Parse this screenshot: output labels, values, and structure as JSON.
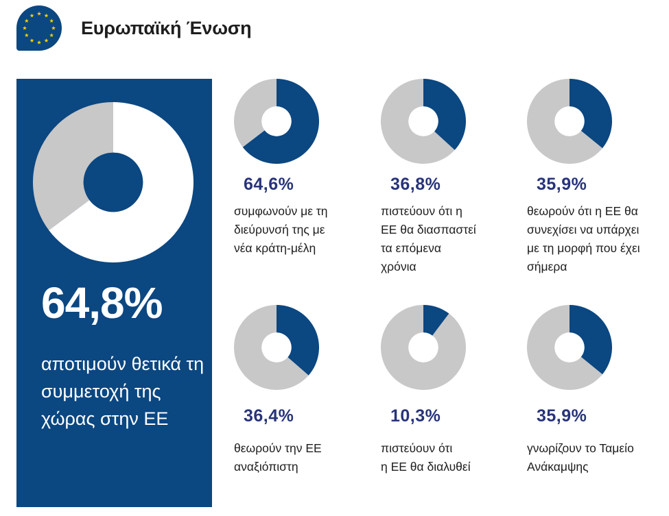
{
  "header": {
    "title": "Ευρωπαϊκή Ένωση",
    "flag_icon": "eu-flag-icon"
  },
  "colors": {
    "blue": "#0b4781",
    "grey": "#c8c8c8",
    "accent_text": "#27337a",
    "white": "#ffffff"
  },
  "main_stat": {
    "value": "64,8%",
    "description": "αποτιμούν θετικά τη συμμετοχή της χώρας στην ΕΕ"
  },
  "chart_data": [
    {
      "type": "pie",
      "title": "64,8%",
      "labels": [
        "αποτιμούν θετικά τη συμμετοχή της χώρας στην ΕΕ",
        ""
      ],
      "values": [
        64.8,
        35.2
      ]
    },
    {
      "type": "pie",
      "title": "64,6%",
      "labels": [
        "συμφωνούν με τη διεύρυνσή της με νέα κράτη-μέλη",
        ""
      ],
      "values": [
        64.6,
        35.4
      ]
    },
    {
      "type": "pie",
      "title": "36,8%",
      "labels": [
        "πιστεύουν ότι η ΕΕ θα διασπαστεί τα επόμενα χρόνια",
        ""
      ],
      "values": [
        36.8,
        63.2
      ]
    },
    {
      "type": "pie",
      "title": "35,9%",
      "labels": [
        "θεωρούν ότι η ΕΕ θα συνεχίσει να υπάρχει με τη μορφή που έχει σήμερα",
        ""
      ],
      "values": [
        35.9,
        64.1
      ]
    },
    {
      "type": "pie",
      "title": "36,4%",
      "labels": [
        "θεωρούν την ΕΕ αναξιόπιστη",
        ""
      ],
      "values": [
        36.4,
        63.6
      ]
    },
    {
      "type": "pie",
      "title": "10,3%",
      "labels": [
        "πιστεύουν ότι η ΕΕ θα διαλυθεί",
        ""
      ],
      "values": [
        10.3,
        89.7
      ]
    },
    {
      "type": "pie",
      "title": "35,9%",
      "labels": [
        "γνωρίζουν το Ταμείο Ανάκαμψης",
        ""
      ],
      "values": [
        35.9,
        64.1
      ]
    }
  ],
  "cards": [
    {
      "value": "64,6%",
      "percent": 64.6,
      "lines": [
        "συμφωνούν με τη",
        "διεύρυνσή της με",
        "νέα κράτη-μέλη"
      ]
    },
    {
      "value": "36,8%",
      "percent": 36.8,
      "lines": [
        "πιστεύουν ότι η",
        "ΕΕ θα διασπαστεί",
        "τα επόμενα",
        "χρόνια"
      ]
    },
    {
      "value": "35,9%",
      "percent": 35.9,
      "lines": [
        "θεωρούν ότι η ΕΕ θα",
        "συνεχίσει να υπάρχει",
        "με τη μορφή που έχει",
        "σήμερα"
      ]
    },
    {
      "value": "36,4%",
      "percent": 36.4,
      "lines": [
        "θεωρούν την ΕΕ",
        "αναξιόπιστη"
      ]
    },
    {
      "value": "10,3%",
      "percent": 10.3,
      "lines": [
        "πιστεύουν ότι",
        "η ΕΕ θα διαλυθεί"
      ]
    },
    {
      "value": "35,9%",
      "percent": 35.9,
      "lines": [
        "γνωρίζουν το Ταμείο",
        "Ανάκαμψης"
      ]
    }
  ],
  "main_percent": 64.8
}
